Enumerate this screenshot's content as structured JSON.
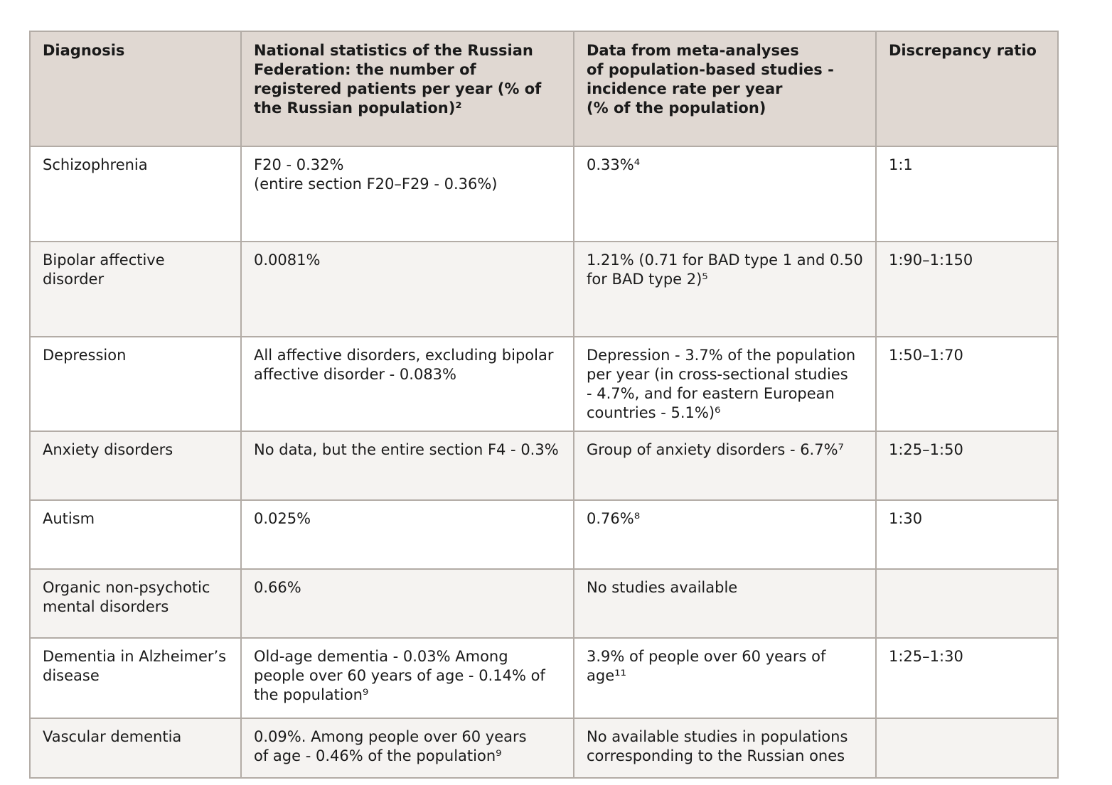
{
  "table": {
    "headers": [
      "Diagnosis",
      "National statistics of the Russian Federation: the number of registered patients per year (% of the Russian population)²",
      "Data from meta-analyses\nof population-based studies -\nincidence rate per year\n(% of the population)",
      "Discrepancy ratio"
    ],
    "rows": [
      {
        "diagnosis": "Schizophrenia",
        "national": "F20 - 0.32%\n(entire section F20–F29 - 0.36%)",
        "meta": "0.33%⁴",
        "ratio": "1:1"
      },
      {
        "diagnosis": "Bipolar affective disorder",
        "national": "0.0081%",
        "meta": "1.21% (0.71 for BAD type 1 and 0.50 for BAD type 2)⁵",
        "ratio": "1:90–1:150"
      },
      {
        "diagnosis": "Depression",
        "national": "All affective disorders, excluding bipolar affective disorder - 0.083%",
        "meta": "Depression - 3.7% of the population per year (in cross-sectional studies\n- 4.7%, and for eastern European countries - 5.1%)⁶",
        "ratio": "1:50–1:70"
      },
      {
        "diagnosis": "Anxiety disorders",
        "national": "No data, but the entire section F4 - 0.3%",
        "meta": "Group of anxiety disorders - 6.7%⁷",
        "ratio": "1:25–1:50"
      },
      {
        "diagnosis": "Autism",
        "national": "0.025%",
        "meta": "0.76%⁸",
        "ratio": "1:30"
      },
      {
        "diagnosis": "Organic non-psychotic mental disorders",
        "national": "0.66%",
        "meta": "No studies available",
        "ratio": ""
      },
      {
        "diagnosis": "Dementia in Alzheimer’s disease",
        "national": "Old-age dementia - 0.03% Among people over 60 years of age - 0.14% of the population⁹",
        "meta": "3.9% of people over 60 years of age¹¹",
        "ratio": "1:25–1:30"
      },
      {
        "diagnosis": "Vascular dementia",
        "national": "0.09%. Among people over 60 years\nof age - 0.46% of the population⁹",
        "meta": "No available studies in populations corresponding to the Russian ones",
        "ratio": ""
      }
    ]
  }
}
